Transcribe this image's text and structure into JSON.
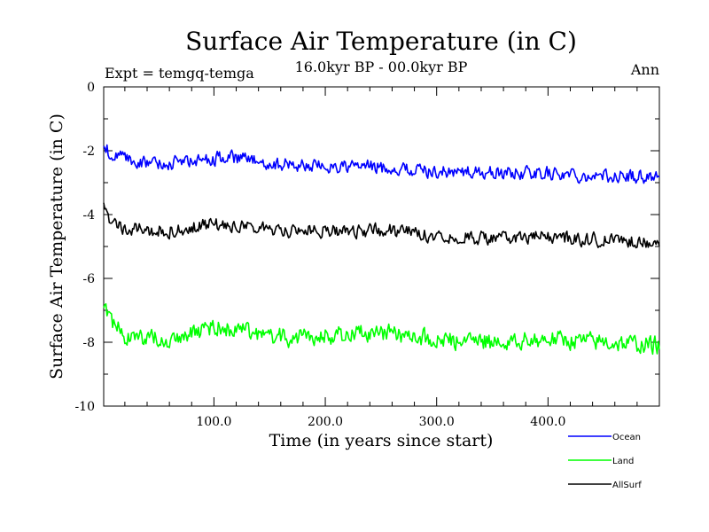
{
  "chart_data": {
    "type": "line",
    "title": "Surface Air Temperature (in C)",
    "subtitle": "16.0kyr BP - 00.0kyr BP",
    "expt_label": "Expt = temgq-temga",
    "period_label": "Ann",
    "xlabel": "Time (in years since start)",
    "ylabel": "Surface Air Temperature (in C)",
    "xlim": [
      1,
      500
    ],
    "ylim": [
      -10,
      0
    ],
    "x_ticks": [
      100,
      200,
      300,
      400
    ],
    "x_tick_labels": [
      "100.0",
      "200.0",
      "300.0",
      "400.0"
    ],
    "y_ticks": [
      0,
      -2,
      -4,
      -6,
      -8,
      -10
    ],
    "y_tick_labels": [
      "0",
      "-2",
      "-4",
      "-6",
      "-8",
      "-10"
    ],
    "series": [
      {
        "name": "Ocean",
        "color": "#0000ff",
        "noise": 0.12,
        "anchors": [
          [
            1,
            -1.8
          ],
          [
            5,
            -2.0
          ],
          [
            20,
            -2.3
          ],
          [
            50,
            -2.4
          ],
          [
            90,
            -2.3
          ],
          [
            110,
            -2.2
          ],
          [
            150,
            -2.4
          ],
          [
            200,
            -2.5
          ],
          [
            240,
            -2.5
          ],
          [
            300,
            -2.65
          ],
          [
            350,
            -2.7
          ],
          [
            400,
            -2.7
          ],
          [
            450,
            -2.8
          ],
          [
            500,
            -2.8
          ]
        ]
      },
      {
        "name": "Land",
        "color": "#00ff00",
        "noise": 0.16,
        "anchors": [
          [
            1,
            -7.0
          ],
          [
            8,
            -7.4
          ],
          [
            25,
            -7.9
          ],
          [
            60,
            -7.9
          ],
          [
            100,
            -7.5
          ],
          [
            120,
            -7.6
          ],
          [
            170,
            -7.9
          ],
          [
            200,
            -7.8
          ],
          [
            250,
            -7.7
          ],
          [
            300,
            -7.9
          ],
          [
            350,
            -8.0
          ],
          [
            400,
            -7.9
          ],
          [
            450,
            -8.0
          ],
          [
            500,
            -8.1
          ]
        ]
      },
      {
        "name": "AllSurf",
        "color": "#000000",
        "noise": 0.12,
        "anchors": [
          [
            1,
            -3.8
          ],
          [
            6,
            -4.1
          ],
          [
            20,
            -4.45
          ],
          [
            60,
            -4.5
          ],
          [
            100,
            -4.3
          ],
          [
            120,
            -4.35
          ],
          [
            170,
            -4.5
          ],
          [
            220,
            -4.5
          ],
          [
            260,
            -4.5
          ],
          [
            300,
            -4.65
          ],
          [
            350,
            -4.75
          ],
          [
            400,
            -4.7
          ],
          [
            450,
            -4.8
          ],
          [
            500,
            -4.85
          ]
        ]
      }
    ],
    "legend": [
      {
        "label": "Ocean",
        "color": "#0000ff"
      },
      {
        "label": "Land",
        "color": "#00ff00"
      },
      {
        "label": "AllSurf",
        "color": "#000000"
      }
    ]
  }
}
